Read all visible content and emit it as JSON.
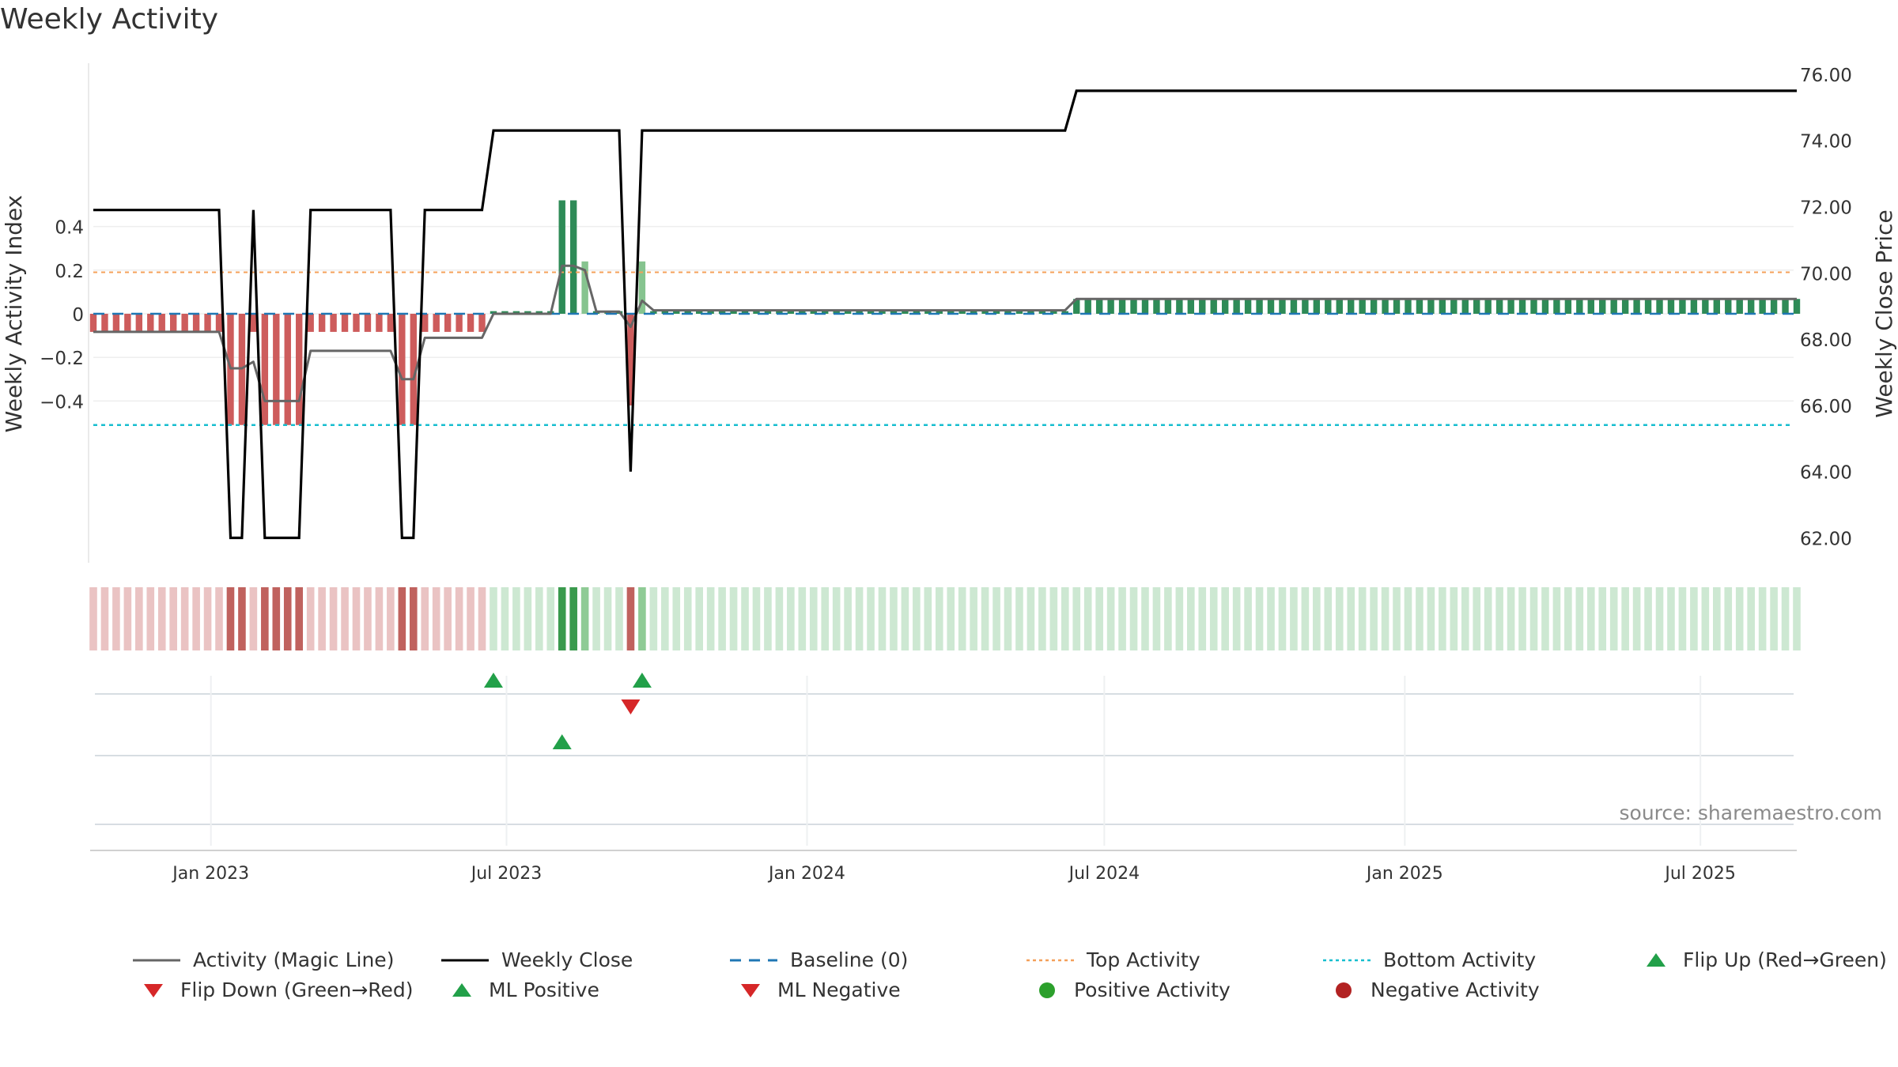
{
  "title": "Weekly Activity",
  "source": "source: sharemaestro.com",
  "colors": {
    "positive_strong": "#2e8b57",
    "positive_light": "#86c48f",
    "negative_strong": "#cd5c5c",
    "negative_light": "#f0a080",
    "strip_pos_light": "#cde8d2",
    "strip_pos_strong": "#3a9a4d",
    "strip_pos_mid": "#8fcb95",
    "strip_neg_light": "#eac3c3",
    "strip_neg_strong": "#c0625e",
    "magic_line": "#666666",
    "weekly_close": "#000000",
    "baseline": "#1f77b4",
    "top_activity": "#f4a05a",
    "bottom_activity": "#17becf",
    "flip_up": "#22a049",
    "flip_down": "#d62728",
    "pos_dot": "#2ca02c",
    "neg_dot": "#b22222"
  },
  "chart_data": {
    "type": "bar",
    "title": "Weekly Activity",
    "ylabel_left": "Weekly Activity Index",
    "ylabel_right": "Weekly Close Price",
    "yleft_ticks": [
      {
        "value": 0.4,
        "label": "0.4"
      },
      {
        "value": 0.2,
        "label": "0.2"
      },
      {
        "value": 0,
        "label": "0"
      },
      {
        "value": -0.2,
        "label": "−0.2"
      },
      {
        "value": -0.4,
        "label": "−0.4"
      }
    ],
    "yright_ticks": [
      "76.00",
      "74.00",
      "72.00",
      "70.00",
      "68.00",
      "66.00",
      "64.00",
      "62.00"
    ],
    "x_ticks": [
      "Jan 2023",
      "Jul 2023",
      "Jan 2024",
      "Jul 2024",
      "Jan 2025",
      "Jul 2025"
    ],
    "x_range": [
      "2022-10-21",
      "2025-08-29"
    ],
    "reference_lines": {
      "baseline": 0,
      "top_activity": 0.19,
      "bottom_activity": -0.51
    },
    "segments": [
      {
        "from": "2022-10-21",
        "to": "2023-01-06",
        "activity": -0.083,
        "magic": -0.083,
        "close": 71.9
      },
      {
        "from": "2023-01-13",
        "to": "2023-01-20",
        "activity": -0.51,
        "magic": -0.25,
        "close": 62.0
      },
      {
        "from": "2023-01-27",
        "to": "2023-01-27",
        "activity": -0.083,
        "magic": -0.22,
        "close": 71.9
      },
      {
        "from": "2023-02-03",
        "to": "2023-02-24",
        "activity": -0.51,
        "magic": -0.4,
        "close": 62.0
      },
      {
        "from": "2023-03-03",
        "to": "2023-04-21",
        "activity": -0.083,
        "magic": -0.17,
        "close": 71.9
      },
      {
        "from": "2023-04-28",
        "to": "2023-05-05",
        "activity": -0.51,
        "magic": -0.3,
        "close": 62.0
      },
      {
        "from": "2023-05-12",
        "to": "2023-06-16",
        "activity": -0.083,
        "magic": -0.11,
        "close": 71.9
      },
      {
        "from": "2023-06-23",
        "to": "2023-07-28",
        "activity": 0.012,
        "magic": 0.0,
        "close": 74.3
      },
      {
        "from": "2023-08-04",
        "to": "2023-08-11",
        "activity": 0.52,
        "magic": 0.22,
        "close": 74.3
      },
      {
        "from": "2023-08-18",
        "to": "2023-08-18",
        "activity": 0.24,
        "magic": 0.2,
        "close": 74.3
      },
      {
        "from": "2023-08-25",
        "to": "2023-09-08",
        "activity": 0.012,
        "magic": 0.01,
        "close": 74.3
      },
      {
        "from": "2023-09-15",
        "to": "2023-09-15",
        "activity": -0.42,
        "magic": -0.06,
        "close": 64.0
      },
      {
        "from": "2023-09-22",
        "to": "2023-09-22",
        "activity": 0.24,
        "magic": 0.06,
        "close": 74.3
      },
      {
        "from": "2023-09-29",
        "to": "2024-06-07",
        "activity": 0.012,
        "magic": 0.016,
        "close": 74.3
      },
      {
        "from": "2024-06-14",
        "to": "2025-08-29",
        "activity": 0.068,
        "magic": 0.068,
        "close": 75.5
      }
    ],
    "signals": {
      "flip_up": [
        "2023-06-23",
        "2023-09-22"
      ],
      "flip_down": [
        "2023-09-15"
      ],
      "ml_positive": [
        "2023-08-04"
      ],
      "ml_negative": [],
      "positive_activity": [],
      "negative_activity": []
    }
  },
  "legend": [
    {
      "label": "Activity (Magic Line)",
      "icon": "solid-line-gray"
    },
    {
      "label": "Weekly Close",
      "icon": "solid-line-black"
    },
    {
      "label": "Baseline (0)",
      "icon": "dashed-line-blue"
    },
    {
      "label": "Top Activity",
      "icon": "dotted-line-orange"
    },
    {
      "label": "Bottom Activity",
      "icon": "dotted-line-cyan"
    },
    {
      "label": "Flip Up (Red→Green)",
      "icon": "triangle-up-green"
    },
    {
      "label": "Flip Down (Green→Red)",
      "icon": "triangle-down-red"
    },
    {
      "label": "ML Positive",
      "icon": "triangle-up-green"
    },
    {
      "label": "ML Negative",
      "icon": "triangle-down-red"
    },
    {
      "label": "Positive Activity",
      "icon": "circle-green"
    },
    {
      "label": "Negative Activity",
      "icon": "circle-darkred"
    }
  ]
}
